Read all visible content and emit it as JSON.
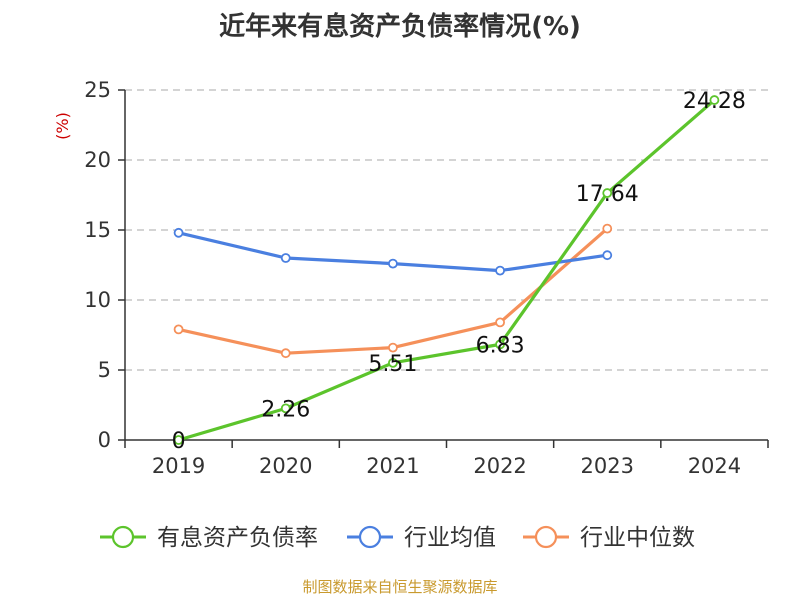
{
  "chart_data": {
    "type": "line",
    "title": "近年来有息资产负债率情况(%)",
    "y_unit": "(%)",
    "categories": [
      "2019",
      "2020",
      "2021",
      "2022",
      "2023",
      "2024"
    ],
    "ylim": [
      0,
      25
    ],
    "yticks": [
      0,
      5,
      10,
      15,
      20,
      25
    ],
    "grid": true,
    "legend_position": "bottom",
    "series": [
      {
        "name": "有息资产负债率",
        "color": "#5cc42c",
        "values": [
          0,
          2.26,
          5.51,
          6.83,
          17.64,
          24.28
        ],
        "data_labels": [
          "0",
          "2.26",
          "5.51",
          "6.83",
          "17.64",
          "24.28"
        ]
      },
      {
        "name": "行业均值",
        "color": "#4a7fe0",
        "values": [
          14.8,
          13.0,
          12.6,
          12.1,
          13.2,
          null
        ]
      },
      {
        "name": "行业中位数",
        "color": "#f5905a",
        "values": [
          7.9,
          6.2,
          6.6,
          8.4,
          15.1,
          null
        ]
      }
    ],
    "source": "制图数据来自恒生聚源数据库",
    "unit_color": "#cc0000",
    "source_color": "#c99a2e"
  }
}
